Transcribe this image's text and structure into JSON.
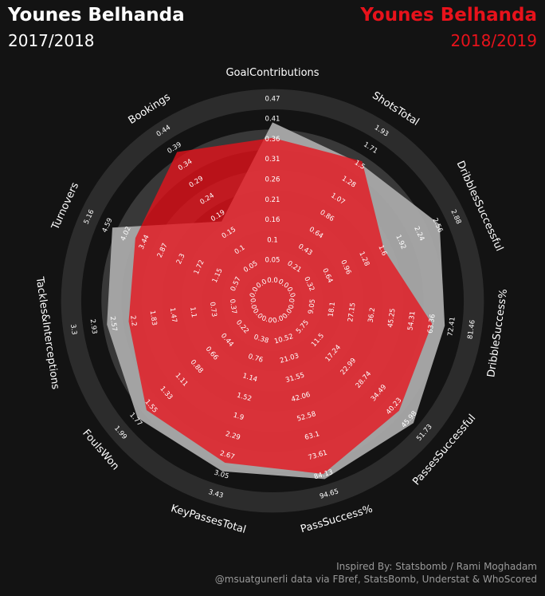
{
  "header": {
    "left_player": "Younes Belhanda",
    "left_season": "2017/2018",
    "right_player": "Younes Belhanda",
    "right_season": "2018/2019"
  },
  "footer": {
    "line1": "Inspired By: Statsbomb / Rami Moghadam",
    "line2": "@msuatgunerli data via FBref, StatsBomb, Understat & WhoScored"
  },
  "colors": {
    "background": "#131313",
    "ring_dark": "#2c2c2c",
    "ring_mid": "#383838",
    "series_2017": "#a8a8a8",
    "series_2018": "#e8121b"
  },
  "chart_data": {
    "type": "radar",
    "title": "Younes Belhanda 2017/2018 vs 2018/2019",
    "axes": [
      {
        "label": "GoalContributions",
        "ticks": [
          "0.0",
          "0.05",
          "0.1",
          "0.16",
          "0.21",
          "0.26",
          "0.31",
          "0.36",
          "0.41",
          "0.47"
        ]
      },
      {
        "label": "ShotsTotal",
        "ticks": [
          "0.0",
          "0.21",
          "0.43",
          "0.64",
          "0.86",
          "1.07",
          "1.28",
          "1.5",
          "1.71",
          "1.93"
        ]
      },
      {
        "label": "DribblesSuccessful",
        "ticks": [
          "0.0",
          "0.32",
          "0.64",
          "0.96",
          "1.28",
          "1.6",
          "1.92",
          "2.24",
          "2.56",
          "2.88"
        ]
      },
      {
        "label": "DribbleSuccess%",
        "ticks": [
          "0.0",
          "9.05",
          "18.1",
          "27.15",
          "36.2",
          "45.25",
          "54.31",
          "63.36",
          "72.41",
          "81.46"
        ]
      },
      {
        "label": "PassesSuccessful",
        "ticks": [
          "0.0",
          "5.75",
          "11.5",
          "17.24",
          "22.99",
          "28.74",
          "34.49",
          "40.23",
          "45.98",
          "51.73"
        ]
      },
      {
        "label": "PassSuccess%",
        "ticks": [
          "0.0",
          "10.52",
          "21.03",
          "31.55",
          "42.06",
          "52.58",
          "63.1",
          "73.61",
          "84.13",
          "94.65"
        ]
      },
      {
        "label": "KeyPassesTotal",
        "ticks": [
          "0.0",
          "0.38",
          "0.76",
          "1.14",
          "1.52",
          "1.9",
          "2.29",
          "2.67",
          "3.05",
          "3.43"
        ]
      },
      {
        "label": "FoulsWon",
        "ticks": [
          "0.0",
          "0.22",
          "0.44",
          "0.66",
          "0.88",
          "1.11",
          "1.33",
          "1.55",
          "1.77",
          "1.99"
        ]
      },
      {
        "label": "Tackles&Interceptions",
        "ticks": [
          "0.0",
          "0.37",
          "0.73",
          "1.1",
          "1.47",
          "1.83",
          "2.2",
          "2.57",
          "2.93",
          "3.3"
        ]
      },
      {
        "label": "Turnovers",
        "ticks": [
          "0.0",
          "0.57",
          "1.15",
          "1.72",
          "2.3",
          "2.87",
          "3.44",
          "4.02",
          "4.59",
          "5.16"
        ]
      },
      {
        "label": "Bookings",
        "ticks": [
          "0.0",
          "0.05",
          "0.1",
          "0.15",
          "0.19",
          "0.24",
          "0.29",
          "0.34",
          "0.39",
          "0.44"
        ]
      }
    ],
    "series": [
      {
        "name": "2017/2018",
        "color": "#a8a8a8",
        "values": [
          0.41,
          1.52,
          2.6,
          69.2,
          47.5,
          86.4,
          2.98,
          1.74,
          2.68,
          4.44,
          0.18
        ]
      },
      {
        "name": "2018/2019",
        "color": "#e8121b",
        "values": [
          0.37,
          1.55,
          1.63,
          63.4,
          42.1,
          83.6,
          2.81,
          1.61,
          2.28,
          3.72,
          0.38
        ]
      }
    ]
  }
}
